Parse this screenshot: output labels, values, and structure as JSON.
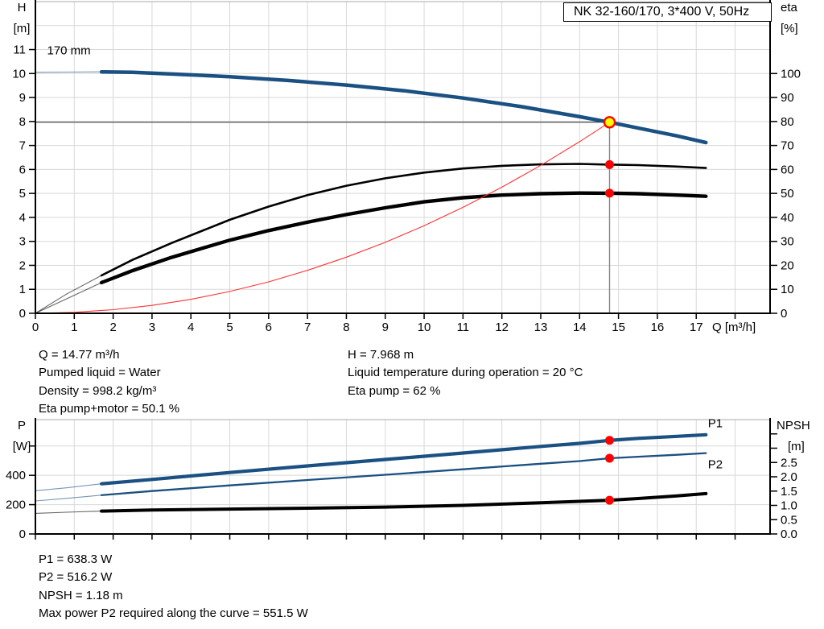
{
  "header": {
    "title_box": "NK 32-160/170, 3*400 V, 50Hz"
  },
  "colors": {
    "curve_blue": "#1a5082",
    "curve_black": "#000000",
    "system_red": "#ff3333",
    "marker_red": "#ff0000",
    "duty_yellow": "#ffff00",
    "grid": "#d8d8d8",
    "axis": "#000000",
    "duty_vline": "#888888",
    "duty_hline": "#222222",
    "top_border": "#aaaaaa"
  },
  "info_mid_left": {
    "lines": [
      "Q = 14.77 m³/h",
      "Pumped liquid = Water",
      "Density = 998.2 kg/m³",
      "Eta pump+motor = 50.1 %"
    ]
  },
  "info_mid_right": {
    "lines": [
      "H = 7.968 m",
      "Liquid temperature during operation = 20 °C",
      "Eta pump = 62 %"
    ]
  },
  "info_bottom": {
    "lines": [
      "P1 = 638.3 W",
      "P2 = 516.2 W",
      "NPSH = 1.18 m",
      "Max power P2 required along the curve = 551.5 W"
    ]
  },
  "chart_data": [
    {
      "name": "hq-eta-chart",
      "type": "line",
      "title": "NK 32-160/170, 3*400 V, 50Hz",
      "x_axis": {
        "label": "Q [m³/h]",
        "min": 0,
        "max": 18.9,
        "labeled_ticks": [
          0,
          1,
          2,
          3,
          4,
          5,
          6,
          7,
          8,
          9,
          10,
          11,
          12,
          13,
          14,
          15,
          16,
          17
        ],
        "unlabeled_ticks": [
          18
        ],
        "grid_values": [
          1,
          2,
          3,
          4,
          5,
          6,
          7,
          8,
          9,
          10,
          11,
          12,
          13,
          14,
          15,
          16,
          17,
          18
        ]
      },
      "left_axis": {
        "title": "H",
        "unit": "[m]",
        "min": 0,
        "max": 13,
        "labeled_ticks": [
          0,
          1,
          2,
          3,
          4,
          5,
          6,
          7,
          8,
          9,
          10,
          11
        ],
        "unlabeled_ticks": [],
        "grid_values": [
          1,
          2,
          3,
          4,
          5,
          6,
          7,
          8,
          9,
          10,
          11,
          12
        ]
      },
      "right_axis": {
        "title": "eta",
        "unit": "[%]",
        "min": 0,
        "max": 130,
        "labeled_ticks": [
          0,
          10,
          20,
          30,
          40,
          50,
          60,
          70,
          80,
          90,
          100
        ],
        "unlabeled_ticks": [],
        "grid_values": []
      },
      "duty_point": {
        "q": 14.77,
        "value": 7.968,
        "axis": "left"
      },
      "series": [
        {
          "name": "pump-curve-170mm",
          "label": "170 mm",
          "label_color": "#000000",
          "label_at": {
            "q": 0.3,
            "v": 10.8
          },
          "axis": "left",
          "color": "#1a5082",
          "width": 4.5,
          "thin_lead_until": 1.7,
          "points": [
            [
              0,
              10.05
            ],
            [
              0.8,
              10.06
            ],
            [
              1.7,
              10.07
            ],
            [
              2.5,
              10.05
            ],
            [
              3.5,
              9.98
            ],
            [
              5,
              9.87
            ],
            [
              6.5,
              9.71
            ],
            [
              8,
              9.52
            ],
            [
              9.5,
              9.28
            ],
            [
              11,
              8.98
            ],
            [
              12.5,
              8.62
            ],
            [
              14,
              8.2
            ],
            [
              14.77,
              7.968
            ],
            [
              15.5,
              7.73
            ],
            [
              16.5,
              7.4
            ],
            [
              17.25,
              7.12
            ]
          ]
        },
        {
          "name": "eta-pump-curve",
          "axis": "right",
          "color": "#000000",
          "width": 2.6,
          "thin_lead_until": 1.7,
          "points": [
            [
              0,
              0
            ],
            [
              0.8,
              8
            ],
            [
              1.7,
              15.8
            ],
            [
              2.5,
              22.3
            ],
            [
              3.5,
              29.3
            ],
            [
              5,
              39
            ],
            [
              6,
              44.5
            ],
            [
              7,
              49.3
            ],
            [
              8,
              53.2
            ],
            [
              9,
              56.3
            ],
            [
              10,
              58.7
            ],
            [
              11,
              60.4
            ],
            [
              12,
              61.5
            ],
            [
              13,
              62.1
            ],
            [
              14,
              62.3
            ],
            [
              14.77,
              62
            ],
            [
              15.5,
              61.8
            ],
            [
              16.5,
              61.2
            ],
            [
              17.25,
              60.6
            ]
          ]
        },
        {
          "name": "eta-pump-motor-curve",
          "axis": "right",
          "color": "#000000",
          "width": 4.4,
          "thin_lead_until": 1.7,
          "points": [
            [
              0,
              0
            ],
            [
              0.8,
              6
            ],
            [
              1.7,
              12.8
            ],
            [
              2.5,
              17.8
            ],
            [
              3.5,
              23.3
            ],
            [
              5,
              30.5
            ],
            [
              6,
              34.5
            ],
            [
              7,
              38
            ],
            [
              8,
              41.2
            ],
            [
              9,
              44
            ],
            [
              10,
              46.5
            ],
            [
              11,
              48.2
            ],
            [
              12,
              49.3
            ],
            [
              13,
              49.9
            ],
            [
              14,
              50.15
            ],
            [
              14.77,
              50.1
            ],
            [
              15.5,
              49.9
            ],
            [
              16.5,
              49.3
            ],
            [
              17.25,
              48.8
            ]
          ]
        },
        {
          "name": "system-curve",
          "axis": "left",
          "color": "#ff3333",
          "width": 1.1,
          "points": [
            [
              0,
              0
            ],
            [
              1,
              0.04
            ],
            [
              2,
              0.15
            ],
            [
              3,
              0.33
            ],
            [
              4,
              0.58
            ],
            [
              5,
              0.91
            ],
            [
              6,
              1.31
            ],
            [
              7,
              1.79
            ],
            [
              8,
              2.34
            ],
            [
              9,
              2.96
            ],
            [
              10,
              3.65
            ],
            [
              11,
              4.42
            ],
            [
              12,
              5.26
            ],
            [
              13,
              6.17
            ],
            [
              14,
              7.16
            ],
            [
              14.77,
              7.968
            ]
          ]
        }
      ],
      "markers": [
        {
          "series": "eta-pump-curve",
          "q": 14.77,
          "value": 62,
          "axis": "right"
        },
        {
          "series": "eta-pump-motor-curve",
          "q": 14.77,
          "value": 50.1,
          "axis": "right"
        }
      ]
    },
    {
      "name": "power-npsh-chart",
      "type": "line",
      "title": "",
      "x_axis": {
        "label": "",
        "min": 0,
        "max": 18.9,
        "labeled_ticks": [],
        "unlabeled_ticks": [
          0,
          1,
          2,
          3,
          4,
          5,
          6,
          7,
          8,
          9,
          10,
          11,
          12,
          13,
          14,
          15,
          16,
          17,
          18
        ],
        "grid_values": [
          1,
          2,
          3,
          4,
          5,
          6,
          7,
          8,
          9,
          10,
          11,
          12,
          13,
          14,
          15,
          16,
          17,
          18
        ]
      },
      "left_axis": {
        "title": "P",
        "unit": "[W]",
        "min": 0,
        "max": 780,
        "labeled_ticks": [
          0,
          200,
          400
        ],
        "unlabeled_ticks": [
          600
        ],
        "grid_values": [
          200,
          400,
          600
        ]
      },
      "right_axis": {
        "title": "NPSH",
        "unit": "[m]",
        "min": 0,
        "max": 4,
        "labeled_ticks": [
          0.0,
          0.5,
          1.0,
          1.5,
          2.0,
          2.5
        ],
        "unlabeled_ticks": [
          3.0,
          3.5
        ],
        "grid_values": []
      },
      "duty_point": null,
      "series": [
        {
          "name": "p1-curve",
          "label": "P1",
          "label_color": "#1a5082",
          "label_at": {
            "q": 17.3,
            "v": 728
          },
          "axis": "left",
          "color": "#1a5082",
          "width": 4.2,
          "thin_lead_until": 1.7,
          "points": [
            [
              0,
              295
            ],
            [
              0.8,
              315
            ],
            [
              1.7,
              342
            ],
            [
              3,
              372
            ],
            [
              5,
              419
            ],
            [
              7,
              464
            ],
            [
              9,
              508
            ],
            [
              11,
              552
            ],
            [
              13,
              597
            ],
            [
              14,
              618
            ],
            [
              14.77,
              638.3
            ],
            [
              15.5,
              652
            ],
            [
              16.5,
              666
            ],
            [
              17.25,
              677
            ]
          ]
        },
        {
          "name": "p2-curve",
          "label": "P2",
          "label_color": "#1a5082",
          "label_at": {
            "q": 17.3,
            "v": 448
          },
          "axis": "left",
          "color": "#1a5082",
          "width": 2.3,
          "thin_lead_until": 1.7,
          "points": [
            [
              0,
              225
            ],
            [
              0.8,
              243
            ],
            [
              1.7,
              265
            ],
            [
              3,
              293
            ],
            [
              5,
              331
            ],
            [
              7,
              368
            ],
            [
              9,
              404
            ],
            [
              11,
              441
            ],
            [
              13,
              479
            ],
            [
              14,
              497
            ],
            [
              14.77,
              516.2
            ],
            [
              15.5,
              527
            ],
            [
              16.5,
              540
            ],
            [
              17.25,
              551.5
            ]
          ]
        },
        {
          "name": "npsh-curve",
          "axis": "right",
          "color": "#000000",
          "width": 4,
          "thin_lead_until": 1.7,
          "points": [
            [
              0,
              0.72
            ],
            [
              0.8,
              0.76
            ],
            [
              1.7,
              0.8
            ],
            [
              3,
              0.84
            ],
            [
              5,
              0.87
            ],
            [
              7,
              0.9
            ],
            [
              9,
              0.94
            ],
            [
              11,
              1.0
            ],
            [
              13,
              1.09
            ],
            [
              14,
              1.14
            ],
            [
              14.77,
              1.18
            ],
            [
              15.5,
              1.24
            ],
            [
              16.5,
              1.33
            ],
            [
              17.25,
              1.41
            ]
          ]
        }
      ],
      "markers": [
        {
          "series": "p1-curve",
          "q": 14.77,
          "value": 638.3,
          "axis": "left"
        },
        {
          "series": "p2-curve",
          "q": 14.77,
          "value": 516.2,
          "axis": "left"
        },
        {
          "series": "npsh-curve",
          "q": 14.77,
          "value": 1.18,
          "axis": "right"
        }
      ]
    }
  ]
}
